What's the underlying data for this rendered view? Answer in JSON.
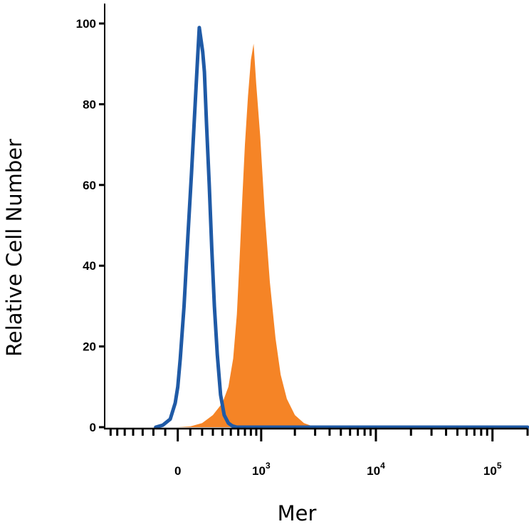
{
  "chart_data": {
    "type": "area",
    "title": "",
    "xlabel": "Mer",
    "ylabel": "Relative Cell Number",
    "x_scale": "biexponential",
    "ylim": [
      0,
      100
    ],
    "y_ticks": [
      {
        "value": 0,
        "label": "0"
      },
      {
        "value": 20,
        "label": "20"
      },
      {
        "value": 40,
        "label": "40"
      },
      {
        "value": 60,
        "label": "60"
      },
      {
        "value": 80,
        "label": "80"
      },
      {
        "value": 100,
        "label": "100"
      }
    ],
    "x_ticks": [
      {
        "label": "0",
        "base": "0",
        "exp": ""
      },
      {
        "label": "10^3",
        "base": "10",
        "exp": "3"
      },
      {
        "label": "10^4",
        "base": "10",
        "exp": "4"
      },
      {
        "label": "10^5",
        "base": "10",
        "exp": "5"
      }
    ],
    "grid": false,
    "legend": "none",
    "series": [
      {
        "style": "outline",
        "color": "#1f5aa6",
        "x": [
          -180,
          -120,
          -60,
          -20,
          0,
          20,
          50,
          80,
          110,
          140,
          160,
          175,
          190,
          205,
          220,
          240,
          265,
          290,
          315,
          345,
          380,
          420,
          470,
          520,
          580,
          650,
          1000,
          10000,
          100000,
          200000
        ],
        "y": [
          0,
          0.5,
          2,
          6,
          10,
          17,
          30,
          47,
          63,
          80,
          91,
          99,
          96,
          93,
          88,
          75,
          60,
          44,
          30,
          18,
          8,
          3,
          1,
          0.3,
          0,
          0,
          0,
          0,
          0,
          0
        ]
      },
      {
        "style": "filled",
        "color": "#f58426",
        "x": [
          -180,
          0,
          100,
          200,
          300,
          400,
          470,
          530,
          580,
          620,
          660,
          700,
          750,
          800,
          850,
          900,
          980,
          1080,
          1200,
          1350,
          1500,
          1700,
          2000,
          2400,
          3000,
          10000,
          100000,
          200000
        ],
        "y": [
          0,
          0,
          0.2,
          1,
          3,
          6,
          10,
          17,
          28,
          42,
          57,
          70,
          82,
          91,
          95,
          85,
          72,
          53,
          36,
          22,
          13,
          7,
          3,
          1,
          0,
          0,
          0,
          0
        ]
      }
    ]
  }
}
